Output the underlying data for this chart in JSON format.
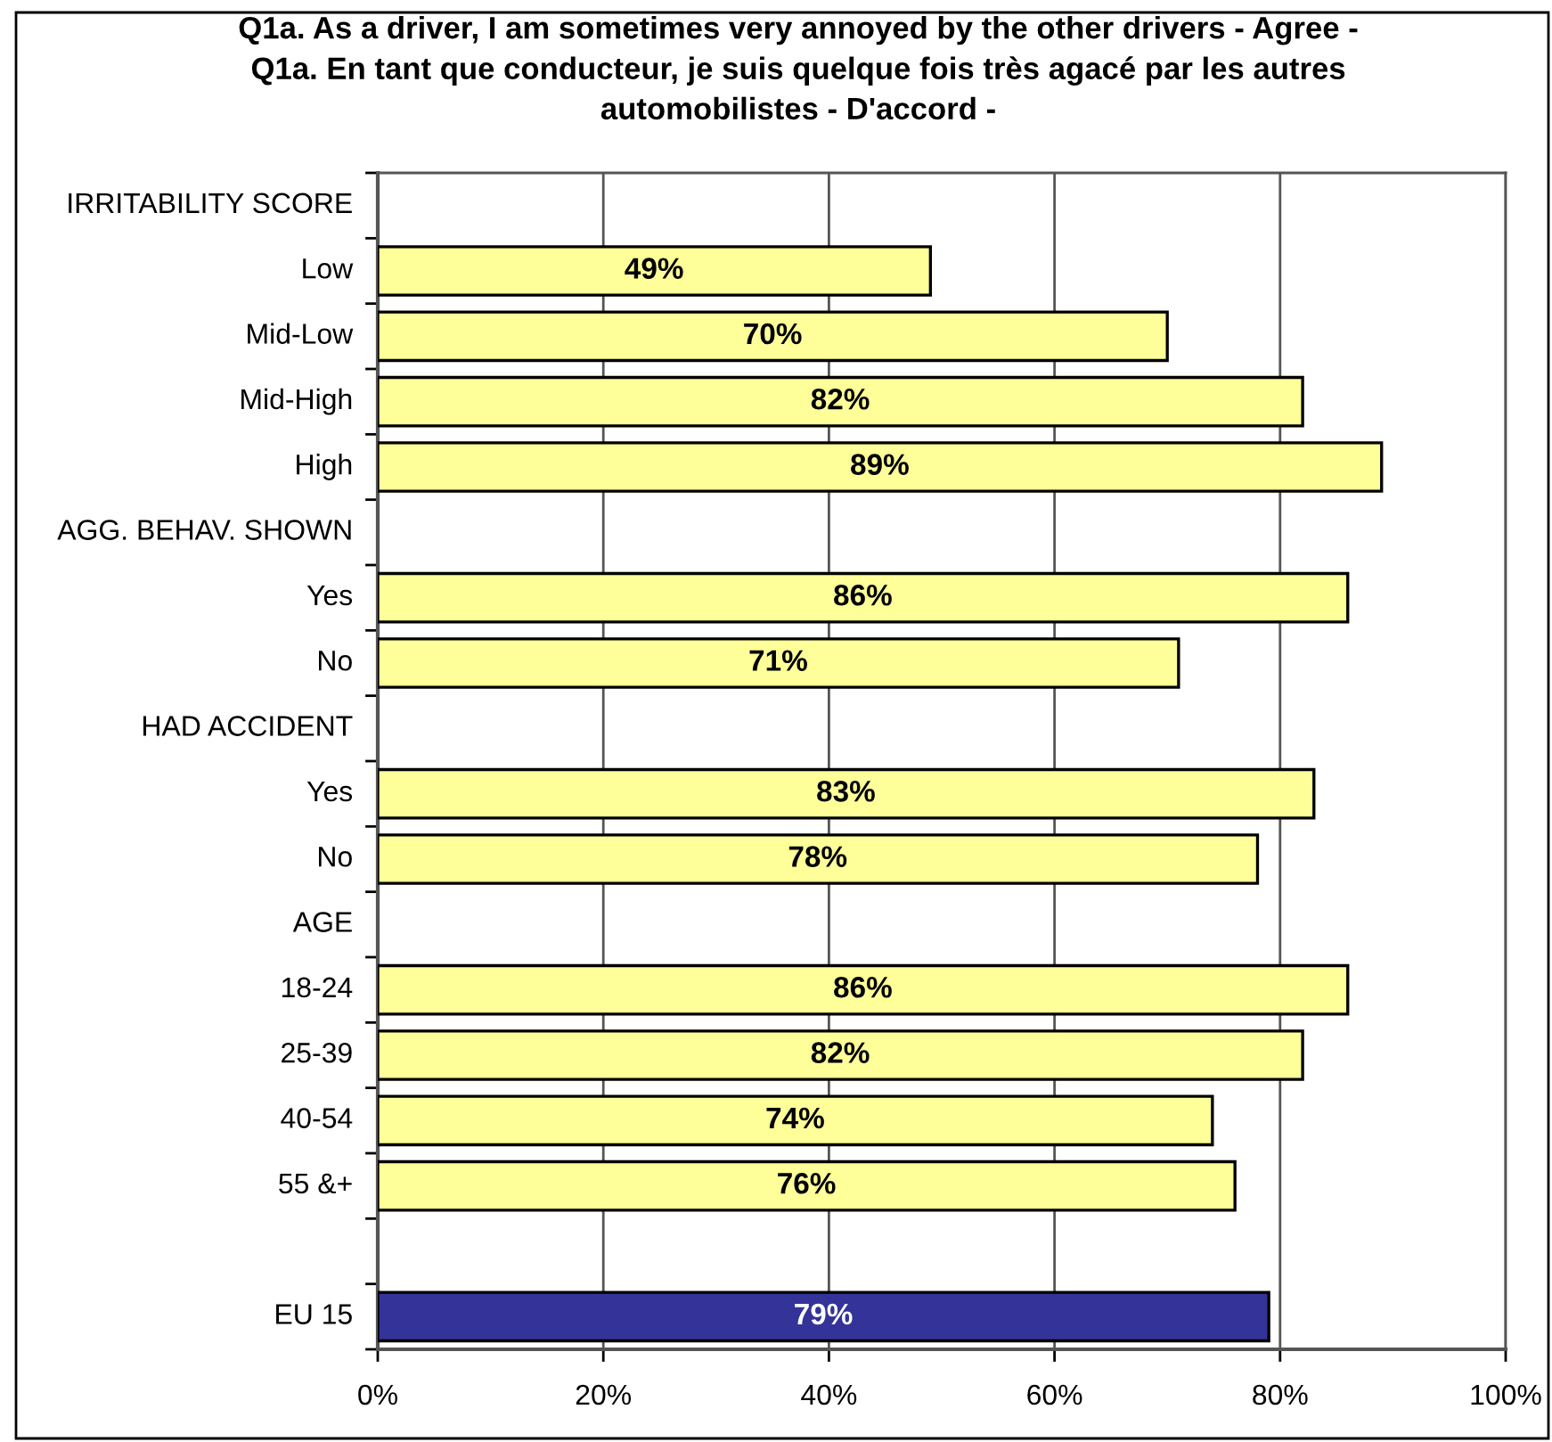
{
  "chart_data": {
    "type": "bar",
    "orientation": "horizontal",
    "title": "Q1a. As a driver, I am sometimes very annoyed by the other drivers - Agree -\nQ1a. En tant que conducteur, je suis quelque fois très agacé par les autres\nautomobilistes - D'accord -",
    "categories": [
      "IRRITABILITY SCORE",
      "Low",
      "Mid-Low",
      "Mid-High",
      "High",
      "AGG. BEHAV. SHOWN",
      "Yes",
      "No",
      "HAD ACCIDENT",
      "Yes",
      "No",
      "AGE",
      "18-24",
      "25-39",
      "40-54",
      "55 &+",
      null,
      "EU 15"
    ],
    "values": [
      null,
      49,
      70,
      82,
      89,
      null,
      86,
      71,
      null,
      83,
      78,
      null,
      86,
      82,
      74,
      76,
      null,
      79
    ],
    "colors": [
      "#ffff99",
      "#ffff99",
      "#ffff99",
      "#ffff99",
      "#ffff99",
      "#ffff99",
      "#ffff99",
      "#ffff99",
      "#ffff99",
      "#ffff99",
      "#ffff99",
      "#ffff99",
      "#ffff99",
      "#ffff99",
      "#ffff99",
      "#ffff99",
      "#ffff99",
      "#333399"
    ],
    "value_labels": [
      null,
      "49%",
      "70%",
      "82%",
      "89%",
      null,
      "86%",
      "71%",
      null,
      "83%",
      "78%",
      null,
      "86%",
      "82%",
      "74%",
      "76%",
      null,
      "79%"
    ],
    "xlim": [
      0,
      100
    ],
    "xticks": [
      {
        "value": 0,
        "label": "0%"
      },
      {
        "value": 20,
        "label": "20%"
      },
      {
        "value": 40,
        "label": "40%"
      },
      {
        "value": 60,
        "label": "60%"
      },
      {
        "value": 80,
        "label": "80%"
      },
      {
        "value": 100,
        "label": "100%"
      }
    ],
    "grid": "x"
  }
}
